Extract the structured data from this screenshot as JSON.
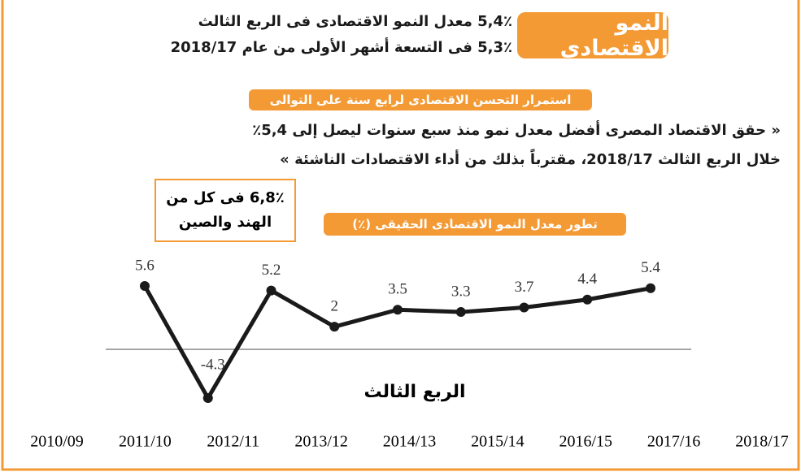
{
  "header": {
    "badge": "النمو الاقتصادى",
    "line1": "5,4٪ معدل النمو الاقتصادى فى الربع الثالث",
    "line2": "5,3٪ فى التسعة أشهر الأولى من عام 2018/17"
  },
  "banner": "استمرار التحسن الاقتصادى لرابع سنة على التوالى",
  "quote": {
    "line1": "« حقق الاقتصاد المصرى أفضل معدل نمو منذ سبع سنوات ليصل إلى 5,4٪",
    "line2": "خلال الربع الثالث 2018/17، مقترباً بذلك من أداء الاقتصادات الناشئة »"
  },
  "note": {
    "line1": "6,8٪ فى كل من",
    "line2": "الهند والصين"
  },
  "chart_data": {
    "type": "line",
    "title": "تطور معدل النمو الاقتصادى الحقيقى (٪)",
    "annotation": "الربع الثالث",
    "categories": [
      "2010/09",
      "2011/10",
      "2012/11",
      "2013/12",
      "2014/13",
      "2015/14",
      "2016/15",
      "2017/16",
      "2018/17"
    ],
    "values": [
      5.6,
      -4.3,
      5.2,
      2,
      3.5,
      3.3,
      3.7,
      4.4,
      5.4
    ],
    "color": "#1a1a1a"
  }
}
